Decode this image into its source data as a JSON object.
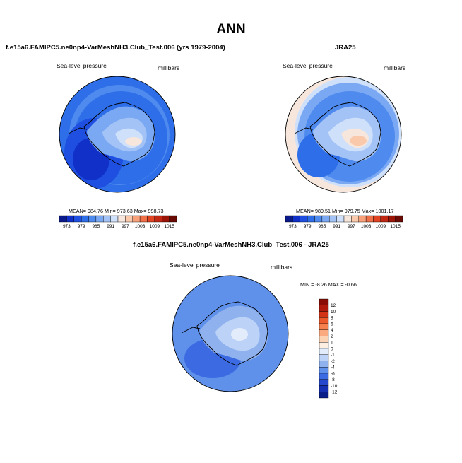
{
  "page": {
    "title": "ANN"
  },
  "chart_data": [
    {
      "type": "heatmap",
      "title": "f.e15a6.FAMIPC5.ne0np4-VarMeshNH3.Club_Test.006 (yrs 1979-2004)",
      "left_label": "Sea-level pressure",
      "right_label": "millibars",
      "stats_text": "MEAN= 984.76  Min= 973.63  Max= 998.73",
      "stats": {
        "mean": 984.76,
        "min": 973.63,
        "max": 998.73
      },
      "colorbar": {
        "tick_labels": [
          "973",
          "979",
          "985",
          "991",
          "997",
          "1003",
          "1009",
          "1015"
        ],
        "levels": [
          973,
          976,
          979,
          982,
          985,
          988,
          991,
          994,
          997,
          1000,
          1003,
          1006,
          1009,
          1012,
          1015
        ],
        "colors": [
          "#0a1a8a",
          "#1030c8",
          "#1f4fe0",
          "#2e6ee8",
          "#4f8aee",
          "#7aa8f2",
          "#a3c3f6",
          "#cfe0fa",
          "#f7e6dc",
          "#fac8aa",
          "#f7a07a",
          "#f0704a",
          "#e04422",
          "#c02814",
          "#9a1408",
          "#6a0a04"
        ]
      }
    },
    {
      "type": "heatmap",
      "title": "JRA25",
      "left_label": "Sea-level pressure",
      "right_label": "millibars",
      "stats_text": "MEAN= 989.51  Min= 979.75  Max= 1001.17",
      "stats": {
        "mean": 989.51,
        "min": 979.75,
        "max": 1001.17
      },
      "colorbar": {
        "tick_labels": [
          "973",
          "979",
          "985",
          "991",
          "997",
          "1003",
          "1009",
          "1015"
        ],
        "levels": [
          973,
          976,
          979,
          982,
          985,
          988,
          991,
          994,
          997,
          1000,
          1003,
          1006,
          1009,
          1012,
          1015
        ],
        "colors": [
          "#0a1a8a",
          "#1030c8",
          "#1f4fe0",
          "#2e6ee8",
          "#4f8aee",
          "#7aa8f2",
          "#a3c3f6",
          "#cfe0fa",
          "#f7e6dc",
          "#fac8aa",
          "#f7a07a",
          "#f0704a",
          "#e04422",
          "#c02814",
          "#9a1408",
          "#6a0a04"
        ]
      }
    },
    {
      "type": "heatmap",
      "title": "f.e15a6.FAMIPC5.ne0np4-VarMeshNH3.Club_Test.006 - JRA25",
      "left_label": "Sea-level pressure",
      "right_label": "millibars",
      "stats_text": "MIN =  -8.26 MAX =   -0.66",
      "stats": {
        "min": -8.26,
        "max": -0.66
      },
      "colorbar": {
        "tick_labels": [
          "12",
          "10",
          "8",
          "6",
          "4",
          "2",
          "1",
          "0",
          "-1",
          "-2",
          "-4",
          "-6",
          "-8",
          "-10",
          "-12"
        ],
        "colors": [
          "#8a0c06",
          "#b01a0c",
          "#d43416",
          "#ec5a2c",
          "#f6804e",
          "#fbaa80",
          "#fcd2b4",
          "#fdeee2",
          "#e2ecfb",
          "#bcd2f6",
          "#8fb2ef",
          "#5f90ea",
          "#3c6ae2",
          "#2548cc",
          "#1530b0",
          "#0a1e8a"
        ]
      }
    }
  ]
}
